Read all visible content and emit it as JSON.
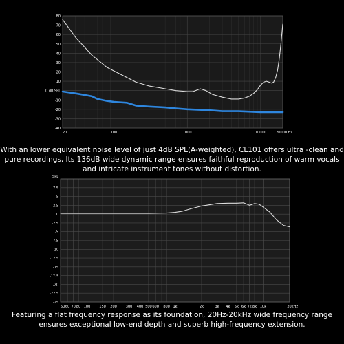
{
  "chart_data": [
    {
      "type": "line",
      "title": "",
      "xlabel": "",
      "ylabel": "",
      "x_scale": "log",
      "xlim": [
        20,
        20000
      ],
      "ylim": [
        -40,
        80
      ],
      "x_ticks": [
        20,
        100,
        1000,
        10000,
        20000
      ],
      "x_tick_labels": [
        "20",
        "100",
        "1000",
        "10000",
        "20000 Hz"
      ],
      "y_ticks": [
        80,
        70,
        60,
        50,
        40,
        30,
        20,
        10,
        0,
        -10,
        -20,
        -30,
        -40
      ],
      "y_tick_labels": [
        "80",
        "70",
        "60",
        "50",
        "40",
        "30",
        "20",
        "10",
        "0 dB SPL",
        "-10",
        "-20",
        "-30",
        "-40"
      ],
      "grid": true,
      "series": [
        {
          "color": "#dddddd",
          "points": [
            [
              20,
              76
            ],
            [
              30,
              57
            ],
            [
              50,
              38
            ],
            [
              80,
              25
            ],
            [
              100,
              21
            ],
            [
              200,
              9
            ],
            [
              300,
              5
            ],
            [
              500,
              2
            ],
            [
              700,
              0
            ],
            [
              1000,
              -1
            ],
            [
              1200,
              -1
            ],
            [
              1500,
              2
            ],
            [
              1800,
              0
            ],
            [
              2200,
              -4
            ],
            [
              3000,
              -7
            ],
            [
              4000,
              -9
            ],
            [
              5000,
              -9
            ],
            [
              6000,
              -8
            ],
            [
              7000,
              -6
            ],
            [
              8000,
              -3
            ],
            [
              9000,
              1
            ],
            [
              10000,
              6
            ],
            [
              11000,
              9
            ],
            [
              12000,
              10
            ],
            [
              13000,
              9
            ],
            [
              14000,
              8
            ],
            [
              15000,
              9
            ],
            [
              16000,
              14
            ],
            [
              17000,
              22
            ],
            [
              18000,
              35
            ],
            [
              19000,
              52
            ],
            [
              20000,
              71
            ]
          ]
        },
        {
          "color": "#2e86de",
          "points": [
            [
              20,
              -1
            ],
            [
              30,
              -3
            ],
            [
              50,
              -6
            ],
            [
              60,
              -9
            ],
            [
              80,
              -11
            ],
            [
              100,
              -12
            ],
            [
              150,
              -13
            ],
            [
              200,
              -16
            ],
            [
              300,
              -17
            ],
            [
              500,
              -18
            ],
            [
              700,
              -19
            ],
            [
              1000,
              -20
            ],
            [
              2000,
              -21
            ],
            [
              3000,
              -22
            ],
            [
              5000,
              -22
            ],
            [
              10000,
              -23
            ],
            [
              20000,
              -23
            ]
          ]
        }
      ]
    },
    {
      "type": "line",
      "title": "",
      "xlabel": "",
      "ylabel": "SPL",
      "x_scale": "log",
      "xlim": [
        50,
        20000
      ],
      "ylim": [
        -25,
        10
      ],
      "x_ticks": [
        50,
        60,
        70,
        80,
        100,
        150,
        200,
        300,
        400,
        500,
        600,
        800,
        1000,
        2000,
        3000,
        4000,
        5000,
        6000,
        7000,
        8000,
        10000,
        20000
      ],
      "x_tick_labels": [
        "50",
        "60",
        "70",
        "80",
        "100",
        "150",
        "200",
        "300",
        "400",
        "500",
        "600",
        "800",
        "1k",
        "2k",
        "3k",
        "4k",
        "5k",
        "6k",
        "7k",
        "8k",
        "10k",
        "20kHz"
      ],
      "y_ticks": [
        10,
        7.5,
        5,
        2.5,
        0,
        -2.5,
        -5,
        -7.5,
        -10,
        -12.5,
        -15,
        -17.5,
        -20,
        -22.5,
        -25
      ],
      "y_tick_labels": [
        "",
        "7.5",
        "5",
        "2.5",
        "0",
        "-2.5",
        "-5",
        "-7.5",
        "-10",
        "-12.5",
        "-15",
        "-17.5",
        "-20",
        "-22.5",
        "-25"
      ],
      "grid": true,
      "series": [
        {
          "color": "#dddddd",
          "points": [
            [
              50,
              0.2
            ],
            [
              100,
              0.2
            ],
            [
              200,
              0.2
            ],
            [
              500,
              0.2
            ],
            [
              800,
              0.3
            ],
            [
              1000,
              0.5
            ],
            [
              1200,
              0.8
            ],
            [
              1500,
              1.5
            ],
            [
              2000,
              2.3
            ],
            [
              3000,
              3.0
            ],
            [
              4000,
              3.1
            ],
            [
              5000,
              3.1
            ],
            [
              6000,
              3.2
            ],
            [
              7000,
              2.5
            ],
            [
              8000,
              3.0
            ],
            [
              9000,
              2.8
            ],
            [
              10000,
              2.0
            ],
            [
              12000,
              0.5
            ],
            [
              14000,
              -1.5
            ],
            [
              17000,
              -3.2
            ],
            [
              20000,
              -3.6
            ]
          ]
        }
      ]
    }
  ],
  "texts": {
    "para1": "With an lower equivalent noise level of just 4dB SPL(A-weighted), CL101 offers ultra -clean and pure recordings, Its 136dB wide dynamic range ensures faithful reproduction of warm vocals and intricate instrument tones without distortion.",
    "para2": "Featuring a flat frequency response as its foundation, 20Hz-20kHz wide frequency range ensures exceptional low-end depth and superb high-frequency extension."
  }
}
